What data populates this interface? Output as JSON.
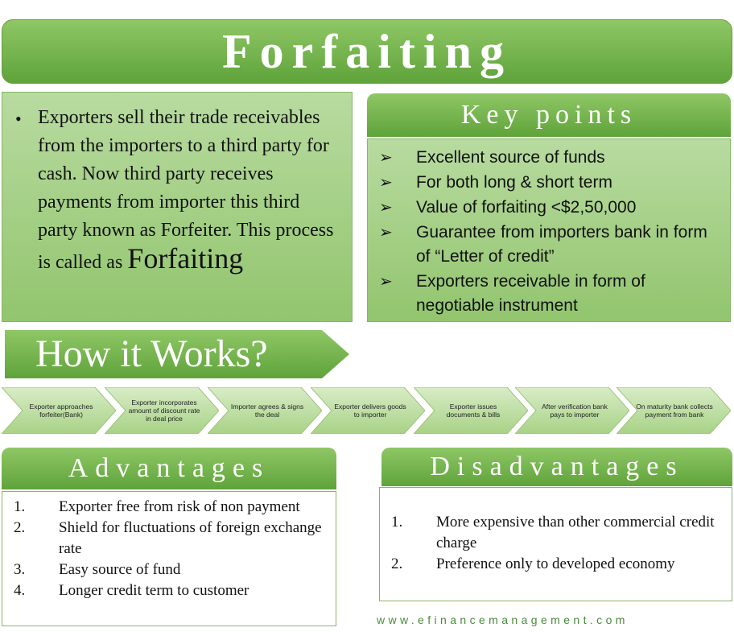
{
  "title": "Forfaiting",
  "intro": {
    "bullet": "•",
    "text": "Exporters sell their trade receivables from the importers to a third party for cash. Now third party receives payments from importer this third party known as Forfeiter. This process is called as ",
    "highlight": "Forfaiting"
  },
  "key_points": {
    "title": "Key points",
    "marker": "➢",
    "items": [
      "Excellent source of funds",
      "For both long & short term",
      "Value of forfaiting  <$2,50,000",
      "Guarantee from importers bank in form of “Letter of credit”",
      "Exporters receivable in form of negotiable instrument"
    ]
  },
  "how_it_works": {
    "title": "How it Works?",
    "steps": [
      "Exporter approaches forfeiter(Bank)",
      "Exporter incorporates amount of discount rate in deal price",
      "Importer agrees & signs the deal",
      "Exporter delivers goods to importer",
      "Exporter issues documents & bills",
      "After verification bank pays to importer",
      "On maturity bank collects payment from bank"
    ]
  },
  "advantages": {
    "title": "Advantages",
    "items": [
      {
        "num": "1.",
        "text": "Exporter free from risk of non payment"
      },
      {
        "num": "2.",
        "text": "Shield for fluctuations of foreign exchange rate"
      },
      {
        "num": "3.",
        "text": "Easy source of fund"
      },
      {
        "num": "4.",
        "text": "Longer credit term to customer"
      }
    ]
  },
  "disadvantages": {
    "title": "Disadvantages",
    "items": [
      {
        "num": "1.",
        "text": "More expensive than other commercial credit charge"
      },
      {
        "num": "2.",
        "text": "Preference only to developed economy"
      }
    ]
  },
  "footer": "www.efinancemanagement.com",
  "colors": {
    "green_dark": "#5fa33a",
    "green_light": "#b8dba0",
    "footer_text": "#4a8a3a"
  }
}
